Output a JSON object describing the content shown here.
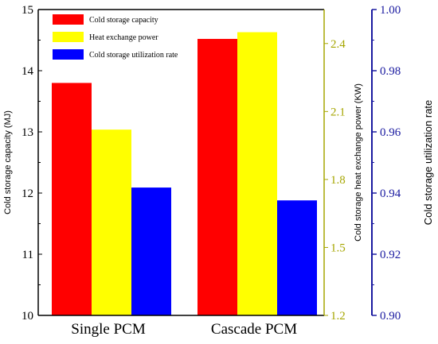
{
  "chart_data": {
    "type": "bar",
    "categories": [
      "Single PCM",
      "Cascade PCM"
    ],
    "series": [
      {
        "name": "Cold storage capacity",
        "axis": "left",
        "color": "#ff0000",
        "values": [
          13.8,
          14.52
        ]
      },
      {
        "name": "Heat exchange power",
        "axis": "right1",
        "color": "#ffff00",
        "values": [
          2.02,
          2.45
        ]
      },
      {
        "name": "Cold storage utilization rate",
        "axis": "right2",
        "color": "#0000ff",
        "values": [
          0.9418,
          0.9376
        ]
      }
    ],
    "axes": {
      "left": {
        "label": "Cold storage capacity (MJ)",
        "range": [
          10,
          15
        ],
        "ticks": [
          "10",
          "11",
          "12",
          "13",
          "14",
          "15"
        ],
        "color": "#000000"
      },
      "right1": {
        "label": "Cold storage heat exchange power (KW)",
        "range": [
          1.2,
          2.55
        ],
        "ticks": [
          "1.2",
          "1.5",
          "1.8",
          "2.1",
          "2.4"
        ],
        "color": "#a6a600"
      },
      "right2": {
        "label": "Cold storage utilization rate",
        "range": [
          0.9,
          1.0
        ],
        "ticks": [
          "0.90",
          "0.92",
          "0.94",
          "0.96",
          "0.98",
          "1.00"
        ],
        "color": "#1a1aa0"
      }
    },
    "legend": {
      "position": "top-left",
      "entries": [
        "Cold storage capacity",
        "Heat exchange power",
        "Cold storage utilization rate"
      ]
    },
    "grid": false
  }
}
